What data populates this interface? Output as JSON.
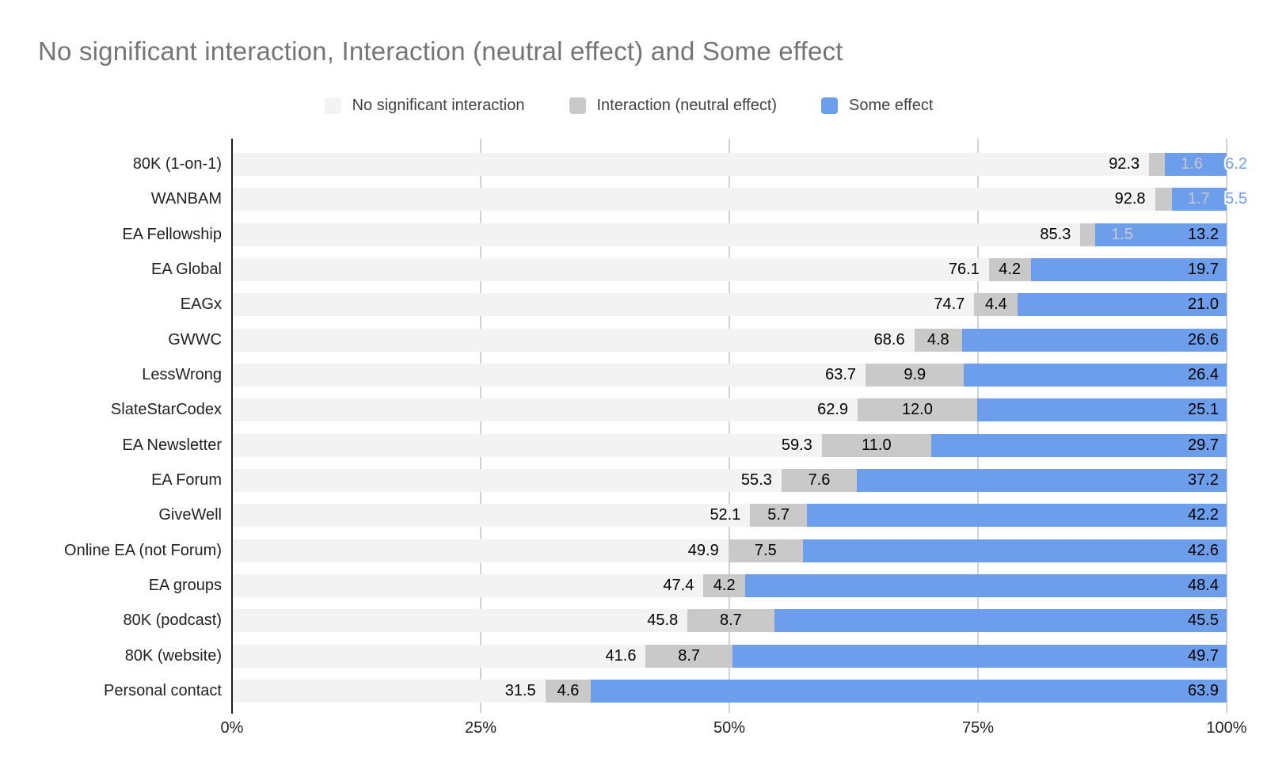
{
  "chart_data": {
    "type": "bar",
    "orientation": "horizontal",
    "stacked": true,
    "unit": "%",
    "title": "No significant interaction, Interaction (neutral effect) and Some effect",
    "xlabel": "",
    "ylabel": "",
    "xlim": [
      0,
      100
    ],
    "grid": true,
    "legend_position": "top-center",
    "categories": [
      "80K (1-on-1)",
      "WANBAM",
      "EA Fellowship",
      "EA Global",
      "EAGx",
      "GWWC",
      "LessWrong",
      "SlateStarCodex",
      "EA Newsletter",
      "EA Forum",
      "GiveWell",
      "Online EA (not Forum)",
      "EA groups",
      "80K (podcast)",
      "80K (website)",
      "Personal contact"
    ],
    "series": [
      {
        "name": "No significant interaction",
        "color": "#f3f3f3",
        "values": [
          92.3,
          92.8,
          85.3,
          76.1,
          74.7,
          68.6,
          63.7,
          62.9,
          59.3,
          55.3,
          52.1,
          49.9,
          47.4,
          45.8,
          41.6,
          31.5
        ]
      },
      {
        "name": "Interaction (neutral effect)",
        "color": "#c9c9c9",
        "values": [
          1.6,
          1.7,
          1.5,
          4.2,
          4.4,
          4.8,
          9.9,
          12.0,
          11.0,
          7.6,
          5.7,
          7.5,
          4.2,
          8.7,
          8.7,
          4.6
        ]
      },
      {
        "name": "Some effect",
        "color": "#6d9eeb",
        "values": [
          6.2,
          5.5,
          13.2,
          19.7,
          21.0,
          26.6,
          26.4,
          25.1,
          29.7,
          37.2,
          42.2,
          42.6,
          48.4,
          45.5,
          49.7,
          63.9
        ]
      }
    ],
    "x_ticks": [
      {
        "label": "0%",
        "pct": 0
      },
      {
        "label": "25%",
        "pct": 25
      },
      {
        "label": "50%",
        "pct": 50
      },
      {
        "label": "75%",
        "pct": 75
      },
      {
        "label": "100%",
        "pct": 100
      }
    ],
    "annotation_style": {
      "inside_color": "#000000",
      "overflow_small_mid_color": "#c9c9c9",
      "overflow_small_end_color": "#6d9eeb"
    }
  },
  "colors": {
    "title": "#757575",
    "legend_text": "#424242",
    "axis_line": "#1f1f1f",
    "gridline": "#d2d2d2",
    "category_text": "#222222",
    "tick_text": "#222222",
    "background": "#ffffff"
  }
}
